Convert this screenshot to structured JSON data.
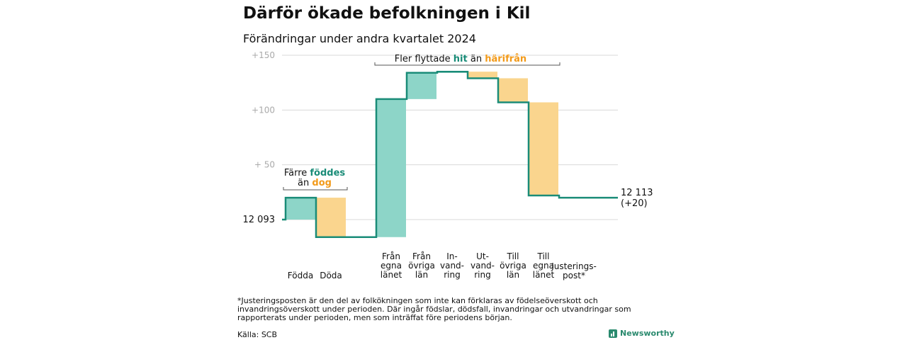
{
  "title": "Därför ökade befolkningen i Kil",
  "subtitle": "Förändringar under andra kvartalet 2024",
  "footnote": "*Justeringsposten är den del av folkökningen som inte kan förklaras av födelseöverskott och invandringsöverskott under perioden. Där ingår födslar, dödsfall, invandringar och utvandringar som rapporterats under perioden, men som inträffat före periodens början.",
  "source": "Källa: SCB",
  "brand": "Newsworthy",
  "colors": {
    "increase": "#8dd5c8",
    "decrease": "#fad58e",
    "line": "#1a8c78",
    "teal_text": "#1a8c78",
    "orange_text": "#f29a1a",
    "grid": "#d9d9d9"
  },
  "chart_data": {
    "type": "waterfall",
    "start_label": "12  093",
    "start_value": 0,
    "end_label_lines": [
      "12 113",
      "(+20)"
    ],
    "y_ticks": [
      {
        "value": 150,
        "label": "+150"
      },
      {
        "value": 100,
        "label": "+100"
      },
      {
        "value": 50,
        "label": "+  50"
      }
    ],
    "ylim": [
      -17,
      150
    ],
    "steps": [
      {
        "category": [
          "Födda"
        ],
        "change": 20,
        "kind": "increase"
      },
      {
        "category": [
          "Döda"
        ],
        "change": -36,
        "kind": "decrease"
      },
      {
        "category": [
          "Från",
          "egna",
          "länet"
        ],
        "change": 126,
        "kind": "increase"
      },
      {
        "category": [
          "Från",
          "övriga",
          "län"
        ],
        "change": 24,
        "kind": "increase"
      },
      {
        "category": [
          "In-",
          "vand-",
          "ring"
        ],
        "change": 1,
        "kind": "increase"
      },
      {
        "category": [
          "Ut-",
          "vand-",
          "ring"
        ],
        "change": -6,
        "kind": "decrease"
      },
      {
        "category": [
          "Till",
          "övriga",
          "län"
        ],
        "change": -22,
        "kind": "decrease"
      },
      {
        "category": [
          "Till",
          "egna",
          "länet"
        ],
        "change": -85,
        "kind": "decrease"
      },
      {
        "category": [
          "Justerings-",
          "post*"
        ],
        "change": -2,
        "kind": "line"
      }
    ],
    "annotation_births": {
      "prefix": "Färre ",
      "hl1": "föddes",
      "middle": "än ",
      "hl2": "dog"
    },
    "annotation_migration": {
      "prefix": "Fler flyttade ",
      "hl1": "hit",
      "middle": "  än ",
      "hl2": "härifrån"
    }
  }
}
